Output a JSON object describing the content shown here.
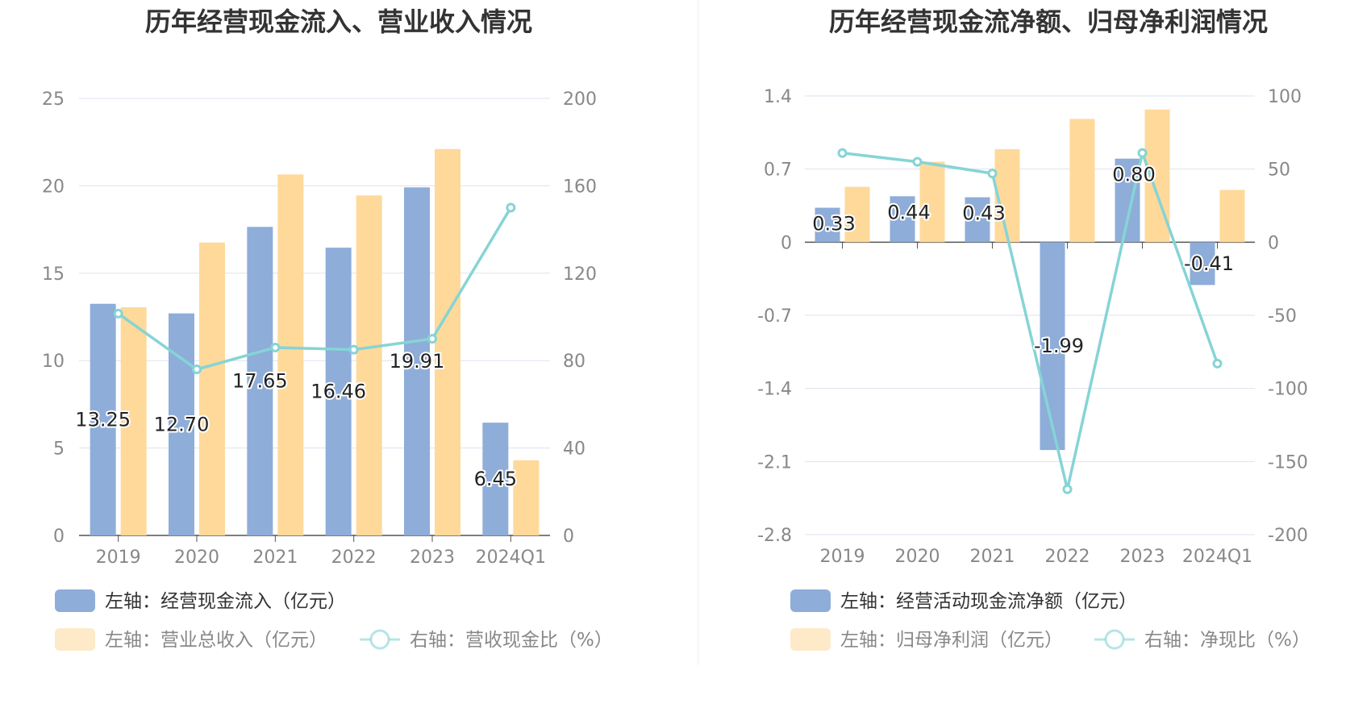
{
  "colors": {
    "bar_primary": "#8eadd9",
    "bar_secondary": "#fed99a",
    "line": "#86d4d6",
    "grid": "#dde2ee",
    "axis_text": "#888888",
    "title": "#333333",
    "divider": "#eeeeee"
  },
  "chart_data": [
    {
      "type": "bar",
      "title": "历年经营现金流入、营业收入情况",
      "categories": [
        "2019",
        "2020",
        "2021",
        "2022",
        "2023",
        "2024Q1"
      ],
      "left_axis": {
        "ticks": [
          "25",
          "20",
          "15",
          "10",
          "5",
          "0"
        ],
        "ylim": [
          0,
          25
        ]
      },
      "right_axis": {
        "ticks": [
          "200",
          "160",
          "120",
          "80",
          "40",
          "0"
        ],
        "ylim": [
          0,
          200
        ]
      },
      "grid": true,
      "legend_placement": "bottom",
      "series": [
        {
          "name": "左轴：经营现金流入（亿元）",
          "axis": "left",
          "kind": "bar",
          "color": "#8eadd9",
          "values": [
            13.25,
            12.7,
            17.65,
            16.46,
            19.91,
            6.45
          ],
          "labels": [
            "13.25",
            "12.70",
            "17.65",
            "16.46",
            "19.91",
            "6.45"
          ]
        },
        {
          "name": "左轴：营业总收入（亿元）",
          "axis": "left",
          "kind": "bar",
          "color": "#fed99a",
          "values": [
            13.05,
            16.75,
            20.65,
            19.45,
            22.1,
            4.3
          ]
        },
        {
          "name": "右轴：营收现金比（%）",
          "axis": "right",
          "kind": "line",
          "color": "#86d4d6",
          "values": [
            101.5,
            76,
            86,
            85,
            90,
            150
          ]
        }
      ]
    },
    {
      "type": "bar",
      "title": "历年经营现金流净额、归母净利润情况",
      "categories": [
        "2019",
        "2020",
        "2021",
        "2022",
        "2023",
        "2024Q1"
      ],
      "left_axis": {
        "ticks": [
          "1.4",
          "0.7",
          "0",
          "-0.7",
          "-1.4",
          "-2.1",
          "-2.8"
        ],
        "ylim": [
          -2.8,
          1.4
        ]
      },
      "right_axis": {
        "ticks": [
          "100",
          "50",
          "0",
          "-50",
          "-100",
          "-150",
          "-200"
        ],
        "ylim": [
          -200,
          100
        ]
      },
      "grid": true,
      "legend_placement": "bottom",
      "series": [
        {
          "name": "左轴：经营活动现金流净额（亿元）",
          "axis": "left",
          "kind": "bar",
          "color": "#8eadd9",
          "values": [
            0.33,
            0.44,
            0.43,
            -1.99,
            0.8,
            -0.41
          ],
          "labels": [
            "0.33",
            "0.44",
            "0.43",
            "-1.99",
            "0.80",
            "-0.41"
          ]
        },
        {
          "name": "左轴：归母净利润（亿元）",
          "axis": "left",
          "kind": "bar",
          "color": "#fed99a",
          "values": [
            0.53,
            0.77,
            0.89,
            1.18,
            1.27,
            0.5
          ]
        },
        {
          "name": "右轴：净现比（%）",
          "axis": "right",
          "kind": "line",
          "color": "#86d4d6",
          "values": [
            61,
            55,
            47,
            -169,
            61,
            -83
          ]
        }
      ]
    }
  ]
}
